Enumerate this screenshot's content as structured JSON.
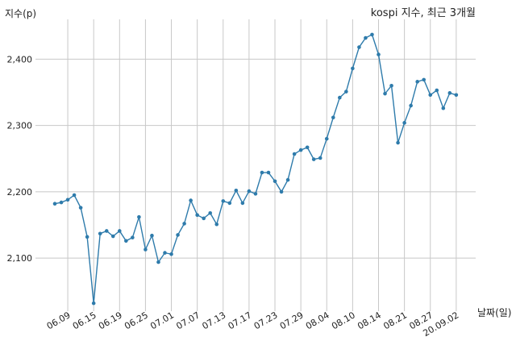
{
  "chart_data": {
    "type": "line",
    "title": "kospi 지수, 최근 3개월",
    "xlabel": "날짜(일)",
    "ylabel": "지수(p)",
    "ylim": [
      2020,
      2460
    ],
    "y_ticks": [
      2100,
      2200,
      2300,
      2400
    ],
    "y_tick_labels": [
      "2,100",
      "2,200",
      "2,300",
      "2,400"
    ],
    "x_ticks": [
      {
        "index": 2,
        "label": "06.09"
      },
      {
        "index": 6,
        "label": "06.15"
      },
      {
        "index": 10,
        "label": "06.19"
      },
      {
        "index": 14,
        "label": "06.25"
      },
      {
        "index": 18,
        "label": "07.01"
      },
      {
        "index": 22,
        "label": "07.07"
      },
      {
        "index": 26,
        "label": "07.13"
      },
      {
        "index": 30,
        "label": "07.17"
      },
      {
        "index": 34,
        "label": "07.23"
      },
      {
        "index": 38,
        "label": "07.29"
      },
      {
        "index": 42,
        "label": "08.04"
      },
      {
        "index": 46,
        "label": "08.10"
      },
      {
        "index": 50,
        "label": "08.14"
      },
      {
        "index": 54,
        "label": "08.21"
      },
      {
        "index": 58,
        "label": "08.27"
      },
      {
        "index": 62,
        "label": "20.09.02"
      }
    ],
    "grid": true,
    "color": "#2e7bab",
    "series": [
      {
        "values": [
          2182,
          2184,
          2188,
          2195,
          2176,
          2132,
          2032,
          2137,
          2141,
          2133,
          2141,
          2126,
          2131,
          2162,
          2113,
          2134,
          2094,
          2108,
          2106,
          2135,
          2152,
          2187,
          2165,
          2160,
          2168,
          2151,
          2186,
          2183,
          2202,
          2183,
          2201,
          2197,
          2229,
          2229,
          2216,
          2200,
          2218,
          2257,
          2263,
          2267,
          2249,
          2251,
          2280,
          2312,
          2342,
          2351,
          2386,
          2418,
          2432,
          2437,
          2407,
          2348,
          2360,
          2274,
          2304,
          2330,
          2366,
          2369,
          2346,
          2353,
          2326,
          2349,
          2346
        ]
      }
    ]
  }
}
